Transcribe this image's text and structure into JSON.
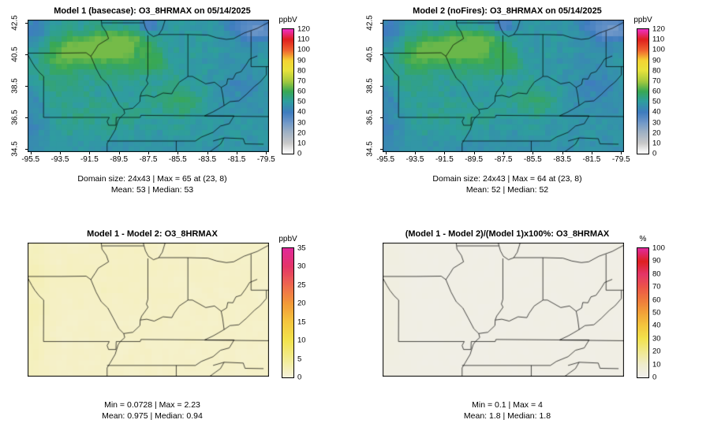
{
  "figure": {
    "background": "#ffffff",
    "colormaps": {
      "o3": [
        [
          0,
          "#ffffff"
        ],
        [
          0.08,
          "#c9c9c9"
        ],
        [
          0.17,
          "#9fb1c4"
        ],
        [
          0.25,
          "#6e97c8"
        ],
        [
          0.33,
          "#3f7cbf"
        ],
        [
          0.42,
          "#2e9e9e"
        ],
        [
          0.5,
          "#38a854"
        ],
        [
          0.58,
          "#a4c93e"
        ],
        [
          0.67,
          "#e8e33c"
        ],
        [
          0.75,
          "#f5d433"
        ],
        [
          0.83,
          "#f0642f"
        ],
        [
          0.92,
          "#e01f1f"
        ],
        [
          1,
          "#ef2fbf"
        ]
      ],
      "diff": [
        [
          0,
          "#f6f2da"
        ],
        [
          0.14,
          "#f2ec92"
        ],
        [
          0.29,
          "#f2e24c"
        ],
        [
          0.43,
          "#f4c63e"
        ],
        [
          0.57,
          "#f29a38"
        ],
        [
          0.71,
          "#ee6a4e"
        ],
        [
          0.86,
          "#e43568"
        ],
        [
          1,
          "#e12a9a"
        ]
      ],
      "pct": [
        [
          0,
          "#f0efec"
        ],
        [
          0.1,
          "#efeccb"
        ],
        [
          0.2,
          "#f0e98e"
        ],
        [
          0.3,
          "#f2e24c"
        ],
        [
          0.4,
          "#f4c63e"
        ],
        [
          0.5,
          "#f2a238"
        ],
        [
          0.6,
          "#ef7a3c"
        ],
        [
          0.7,
          "#ec5548"
        ],
        [
          0.8,
          "#e43568"
        ],
        [
          0.9,
          "#df2020"
        ],
        [
          1,
          "#e12a9a"
        ]
      ]
    },
    "panels": [
      {
        "title": "Model 1 (basecase): O3_8HRMAX on 05/14/2025",
        "stats1": "Domain size: 24x43 | Max = 65 at (23, 8)",
        "stats2": "Mean: 53 |  Median: 53",
        "unit": "ppbV",
        "cb_max": 120,
        "cb_ticks": [
          0,
          10,
          20,
          30,
          40,
          50,
          60,
          70,
          80,
          90,
          100,
          110,
          120
        ],
        "x_ticks": [
          "-95.5",
          "-93.5",
          "-91.5",
          "-89.5",
          "-87.5",
          "-85.5",
          "-83.5",
          "-81.5",
          "-79.5"
        ],
        "y_ticks": [
          "42.5",
          "40.5",
          "38.5",
          "36.5",
          "34.5"
        ],
        "cmap": "o3",
        "field": "model1"
      },
      {
        "title": "Model 2 (noFires): O3_8HRMAX on 05/14/2025",
        "stats1": "Domain size: 24x43 | Max = 64 at (23, 8)",
        "stats2": "Mean: 52 |  Median: 52",
        "unit": "ppbV",
        "cb_max": 120,
        "cb_ticks": [
          0,
          10,
          20,
          30,
          40,
          50,
          60,
          70,
          80,
          90,
          100,
          110,
          120
        ],
        "x_ticks": [
          "-95.5",
          "-93.5",
          "-91.5",
          "-89.5",
          "-87.5",
          "-85.5",
          "-83.5",
          "-81.5",
          "-79.5"
        ],
        "y_ticks": [
          "42.5",
          "40.5",
          "38.5",
          "36.5",
          "34.5"
        ],
        "cmap": "o3",
        "field": "model2"
      },
      {
        "title": "Model 1 - Model 2: O3_8HRMAX",
        "stats1": "Min = 0.0728 | Max = 2.23",
        "stats2": "Mean: 0.975 |  Median: 0.94",
        "unit": "ppbV",
        "cb_max": 35,
        "cb_ticks": [
          0,
          5,
          10,
          15,
          20,
          25,
          30,
          35
        ],
        "x_ticks": [],
        "y_ticks": [],
        "cmap": "diff",
        "field": "diff"
      },
      {
        "title": "(Model 1 - Model 2)/(Model 1)x100%: O3_8HRMAX",
        "stats1": "Min = 0.1 | Max = 4",
        "stats2": "Mean: 1.8 |  Median: 1.8",
        "unit": "%",
        "cb_max": 100,
        "cb_ticks": [
          0,
          10,
          20,
          30,
          40,
          50,
          60,
          70,
          80,
          90,
          100
        ],
        "x_ticks": [],
        "y_ticks": [],
        "cmap": "pct",
        "field": "pct"
      }
    ]
  },
  "chart_data": [
    {
      "type": "heatmap",
      "title": "Model 1 (basecase): O3_8HRMAX on 05/14/2025",
      "grid_rows": 24,
      "grid_cols": 43,
      "x_ticks": [
        -95.5,
        -93.5,
        -91.5,
        -89.5,
        -87.5,
        -85.5,
        -83.5,
        -81.5,
        -79.5
      ],
      "y_ticks": [
        42.5,
        40.5,
        38.5,
        36.5,
        34.5
      ],
      "xlabel": "",
      "ylabel": "",
      "colorbar": {
        "unit": "ppbV",
        "range": [
          0,
          120
        ],
        "ticks": [
          0,
          10,
          20,
          30,
          40,
          50,
          60,
          70,
          80,
          90,
          100,
          110,
          120
        ],
        "position": "right"
      },
      "stats": {
        "max": 65,
        "max_cell": [
          23,
          8
        ],
        "mean": 53,
        "median": 53
      },
      "grid": false
    },
    {
      "type": "heatmap",
      "title": "Model 2 (noFires): O3_8HRMAX on 05/14/2025",
      "grid_rows": 24,
      "grid_cols": 43,
      "x_ticks": [
        -95.5,
        -93.5,
        -91.5,
        -89.5,
        -87.5,
        -85.5,
        -83.5,
        -81.5,
        -79.5
      ],
      "y_ticks": [
        42.5,
        40.5,
        38.5,
        36.5,
        34.5
      ],
      "xlabel": "",
      "ylabel": "",
      "colorbar": {
        "unit": "ppbV",
        "range": [
          0,
          120
        ],
        "ticks": [
          0,
          10,
          20,
          30,
          40,
          50,
          60,
          70,
          80,
          90,
          100,
          110,
          120
        ],
        "position": "right"
      },
      "stats": {
        "max": 64,
        "max_cell": [
          23,
          8
        ],
        "mean": 52,
        "median": 52
      },
      "grid": false
    },
    {
      "type": "heatmap",
      "title": "Model 1 - Model 2: O3_8HRMAX",
      "grid_rows": 24,
      "grid_cols": 43,
      "x_ticks": [],
      "y_ticks": [],
      "xlabel": "",
      "ylabel": "",
      "colorbar": {
        "unit": "ppbV",
        "range": [
          0,
          35
        ],
        "ticks": [
          0,
          5,
          10,
          15,
          20,
          25,
          30,
          35
        ],
        "position": "right"
      },
      "stats": {
        "min": 0.0728,
        "max": 2.23,
        "mean": 0.975,
        "median": 0.94
      },
      "grid": false
    },
    {
      "type": "heatmap",
      "title": "(Model 1 - Model 2)/(Model 1)x100%: O3_8HRMAX",
      "grid_rows": 24,
      "grid_cols": 43,
      "x_ticks": [],
      "y_ticks": [],
      "xlabel": "",
      "ylabel": "",
      "colorbar": {
        "unit": "%",
        "range": [
          0,
          100
        ],
        "ticks": [
          0,
          10,
          20,
          30,
          40,
          50,
          60,
          70,
          80,
          90,
          100
        ],
        "position": "right"
      },
      "stats": {
        "min": 0.1,
        "max": 4,
        "mean": 1.8,
        "median": 1.8
      },
      "grid": false
    }
  ]
}
